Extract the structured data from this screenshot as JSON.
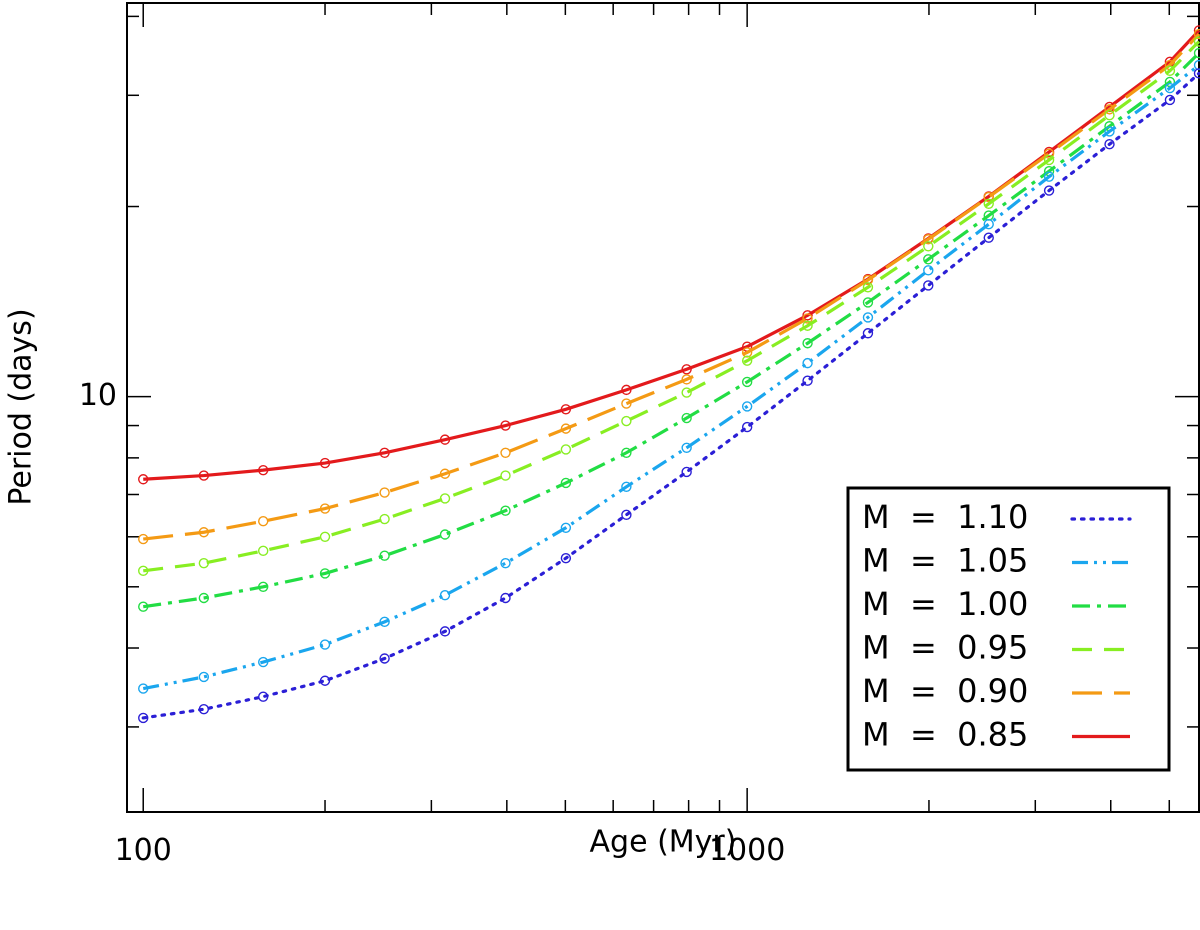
{
  "chart_data": {
    "type": "line",
    "xlabel": "Age (Myr)",
    "ylabel": "Period (days)",
    "xscale": "log",
    "yscale": "log",
    "xlim": [
      94,
      5600
    ],
    "ylim": [
      2.2,
      42
    ],
    "xticks": [
      100,
      1000
    ],
    "xtick_labels": [
      "100",
      "1000"
    ],
    "yticks": [
      10
    ],
    "ytick_labels": [
      "10"
    ],
    "grid": false,
    "legend_position": "bottom-right",
    "markers": "open circles",
    "x": [
      100,
      126,
      158,
      200,
      251,
      316,
      398,
      501,
      631,
      794,
      1000,
      1259,
      1585,
      1995,
      2512,
      3162,
      3981,
      5012,
      5600
    ],
    "series": [
      {
        "name": "M = 1.10",
        "legend_label": "M  =  1.10",
        "color": "#2b1fd6",
        "style": "dotted",
        "values": [
          3.1,
          3.2,
          3.35,
          3.55,
          3.85,
          4.25,
          4.8,
          5.55,
          6.5,
          7.6,
          8.95,
          10.6,
          12.6,
          15.0,
          17.85,
          21.2,
          25.1,
          29.5,
          32.5
        ]
      },
      {
        "name": "M = 1.05",
        "legend_label": "M  =  1.05",
        "color": "#1aa6ee",
        "style": "dash-dot-dot",
        "values": [
          3.45,
          3.6,
          3.8,
          4.05,
          4.4,
          4.85,
          5.45,
          6.2,
          7.2,
          8.3,
          9.65,
          11.3,
          13.35,
          15.85,
          18.75,
          22.3,
          26.3,
          30.8,
          33.5
        ]
      },
      {
        "name": "M = 1.00",
        "legend_label": "M  =  1.00",
        "color": "#22dd44",
        "style": "dash-dot",
        "values": [
          4.65,
          4.8,
          5.0,
          5.25,
          5.6,
          6.05,
          6.6,
          7.3,
          8.15,
          9.25,
          10.55,
          12.15,
          14.1,
          16.5,
          19.35,
          22.75,
          26.8,
          31.5,
          35.0
        ]
      },
      {
        "name": "M = 0.95",
        "legend_label": "M  =  0.95",
        "color": "#88ee22",
        "style": "dashed",
        "values": [
          5.3,
          5.45,
          5.7,
          6.0,
          6.4,
          6.9,
          7.5,
          8.25,
          9.15,
          10.15,
          11.4,
          12.95,
          14.9,
          17.3,
          20.2,
          23.7,
          27.9,
          32.8,
          36.5
        ]
      },
      {
        "name": "M = 0.90",
        "legend_label": "M  =  0.90",
        "color": "#f49a14",
        "style": "long-dash",
        "values": [
          5.95,
          6.1,
          6.35,
          6.65,
          7.05,
          7.55,
          8.15,
          8.9,
          9.75,
          10.65,
          11.75,
          13.3,
          15.3,
          17.75,
          20.7,
          24.25,
          28.5,
          33.5,
          37.5
        ]
      },
      {
        "name": "M = 0.85",
        "legend_label": "M  =  0.85",
        "color": "#e31a1c",
        "style": "solid",
        "values": [
          7.4,
          7.5,
          7.65,
          7.85,
          8.15,
          8.55,
          9.0,
          9.55,
          10.25,
          11.05,
          12.0,
          13.45,
          15.35,
          17.8,
          20.75,
          24.4,
          28.75,
          33.9,
          38.0
        ]
      }
    ]
  }
}
